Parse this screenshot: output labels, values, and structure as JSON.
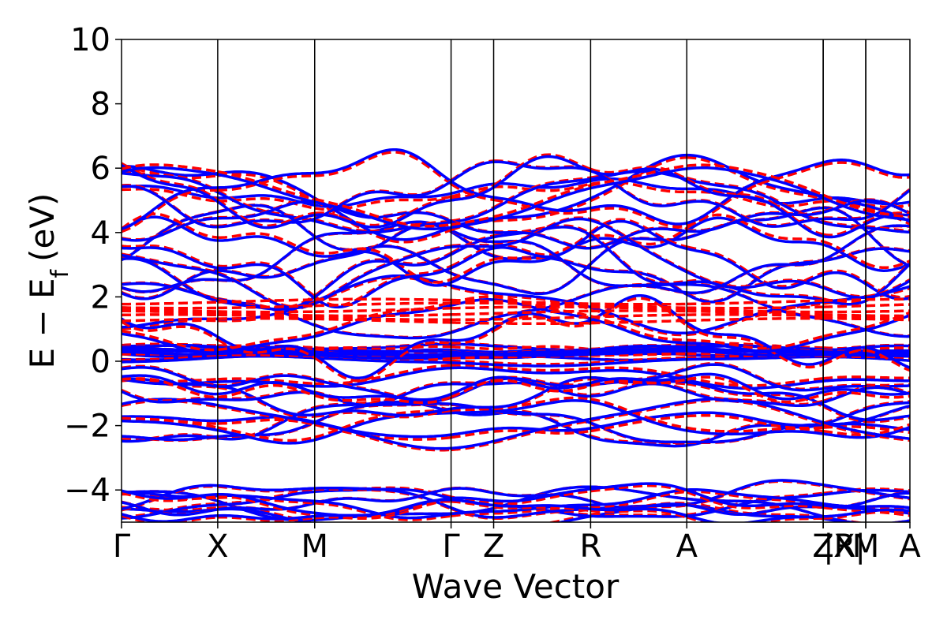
{
  "chart_data": {
    "type": "line",
    "xlabel": "Wave Vector",
    "ylabel": "E − E",
    "ylabel_subscript": "f",
    "ylabel_unit": "(eV)",
    "ylim": [
      -5,
      10
    ],
    "yticks": [
      -4,
      -2,
      0,
      2,
      4,
      6,
      8,
      10
    ],
    "ytick_labels": [
      "−4",
      "−2",
      "0",
      "2",
      "4",
      "6",
      "8",
      "10"
    ],
    "kpath_labels": [
      "Γ",
      "X",
      "M",
      "Γ",
      "Z",
      "R",
      "A",
      "Z",
      "|R",
      "X|",
      "M",
      "A"
    ],
    "kpath_positions": [
      0,
      0.122,
      0.245,
      0.418,
      0.472,
      0.595,
      0.717,
      0.89,
      0.89,
      0.944,
      0.944,
      1.0
    ],
    "series": [
      {
        "style": "solid",
        "color": "#0000ff"
      },
      {
        "style": "dashed",
        "color": "#ff0000"
      }
    ],
    "grid": false
  }
}
